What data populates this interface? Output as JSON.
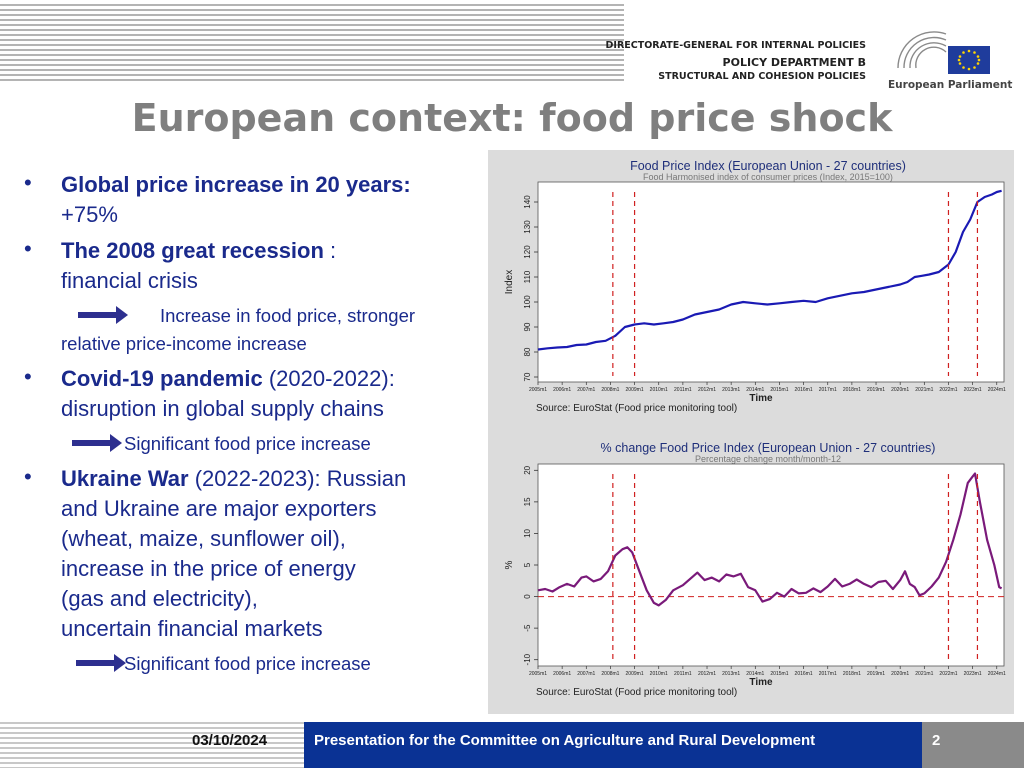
{
  "header": {
    "dg": "DIRECTORATE-GENERAL FOR INTERNAL POLICIES",
    "dept": "POLICY DEPARTMENT B",
    "sub": "STRUCTURAL AND COHESION POLICIES",
    "ep": "European Parliament"
  },
  "slide": {
    "title": "European context: food price shock"
  },
  "bullets": {
    "b1_bold": "Global price increase in 20 years:",
    "b1_text": "+75%",
    "b2_bold": "The 2008 great recession",
    "b2_text": " :",
    "b2_line2": "financial crisis",
    "b2_sub_a": "Increase in food price, stronger",
    "b2_sub_b": "relative price-income increase",
    "b3_bold": "Covid-19 pandemic",
    "b3_text": " (2020-2022):",
    "b3_line2": "disruption in global supply chains",
    "b3_sub": "Significant food price increase",
    "b4_bold": "Ukraine War",
    "b4_text": " (2022-2023): Russian",
    "b4_l2": "and Ukraine are major exporters",
    "b4_l3": "(wheat, maize, sunflower oil),",
    "b4_l4": "increase in the price of energy",
    "b4_l5": "(gas and electricity),",
    "b4_l6": "uncertain financial markets",
    "b4_sub": "Significant food price increase"
  },
  "footer": {
    "date": "03/10/2024",
    "presentation": "Presentation for the Committee on Agriculture and Rural Development",
    "page": "2"
  },
  "chart_data": [
    {
      "type": "line",
      "title": "Food Price Index (European Union - 27 countries)",
      "subtitle": "Food Harmonised index of consumer prices (Index, 2015=100)",
      "xlabel": "Time",
      "ylabel": "Index",
      "source": "Source: EuroStat (Food price monitoring tool)",
      "ylim": [
        68,
        148
      ],
      "yticks": [
        70,
        80,
        90,
        100,
        110,
        120,
        130,
        140
      ],
      "xlim": [
        2005,
        2024.3
      ],
      "xticks": [
        "2005m1",
        "2006m1",
        "2007m1",
        "2008m1",
        "2009m1",
        "2010m1",
        "2011m1",
        "2012m1",
        "2013m1",
        "2014m1",
        "2015m1",
        "2016m1",
        "2017m1",
        "2018m1",
        "2019m1",
        "2020m1",
        "2021m1",
        "2022m1",
        "2023m1",
        "2024m1"
      ],
      "grid": false,
      "color": "#1a1ab4",
      "series": [
        {
          "x": [
            2005.0,
            2005.4,
            2005.8,
            2006.2,
            2006.6,
            2007.0,
            2007.4,
            2007.8,
            2008.2,
            2008.6,
            2009.0,
            2009.4,
            2009.8,
            2010.2,
            2010.6,
            2011.0,
            2011.5,
            2012.0,
            2012.5,
            2013.0,
            2013.5,
            2014.0,
            2014.5,
            2015.0,
            2015.5,
            2016.0,
            2016.5,
            2017.0,
            2017.5,
            2018.0,
            2018.5,
            2019.0,
            2019.5,
            2020.0,
            2020.3,
            2020.6,
            2020.9,
            2021.2,
            2021.6,
            2022.0,
            2022.3,
            2022.6,
            2022.9,
            2023.2,
            2023.5,
            2023.8,
            2024.0,
            2024.2
          ],
          "y": [
            81,
            81.5,
            81.8,
            82,
            82.8,
            83,
            84,
            84.5,
            86.5,
            90,
            91,
            91.5,
            91,
            91.5,
            92,
            93,
            95,
            96,
            97,
            99,
            100,
            99.5,
            99,
            99.5,
            100,
            100.5,
            100,
            101.5,
            102.5,
            103.5,
            104,
            105,
            106,
            107,
            108,
            110,
            110.5,
            111,
            112,
            115,
            120,
            128,
            133,
            140,
            142,
            143,
            144,
            144.5
          ]
        }
      ],
      "vlines": [
        2008.1,
        2009.0,
        2022.0,
        2023.2
      ]
    },
    {
      "type": "line",
      "title": "% change Food Price Index (European Union - 27 countries)",
      "subtitle": "Percentage change month/month-12",
      "xlabel": "Time",
      "ylabel": "%",
      "source": "Source: EuroStat (Food price monitoring tool)",
      "ylim": [
        -11,
        21
      ],
      "yticks": [
        -10,
        -5,
        0,
        5,
        10,
        15,
        20
      ],
      "xlim": [
        2005,
        2024.3
      ],
      "xticks": [
        "2005m1",
        "2006m1",
        "2007m1",
        "2008m1",
        "2009m1",
        "2010m1",
        "2011m1",
        "2012m1",
        "2013m1",
        "2014m1",
        "2015m1",
        "2016m1",
        "2017m1",
        "2018m1",
        "2019m1",
        "2020m1",
        "2021m1",
        "2022m1",
        "2023m1",
        "2024m1"
      ],
      "grid": false,
      "color": "#7a1a7a",
      "hline": 0,
      "series": [
        {
          "x": [
            2005.0,
            2005.3,
            2005.6,
            2005.9,
            2006.2,
            2006.5,
            2006.8,
            2007.0,
            2007.3,
            2007.6,
            2007.9,
            2008.2,
            2008.5,
            2008.7,
            2008.9,
            2009.2,
            2009.5,
            2009.8,
            2010.0,
            2010.3,
            2010.6,
            2011.0,
            2011.3,
            2011.6,
            2011.9,
            2012.2,
            2012.5,
            2012.8,
            2013.1,
            2013.4,
            2013.7,
            2014.0,
            2014.3,
            2014.6,
            2014.9,
            2015.2,
            2015.5,
            2015.8,
            2016.1,
            2016.4,
            2016.7,
            2017.0,
            2017.3,
            2017.6,
            2017.9,
            2018.2,
            2018.5,
            2018.8,
            2019.1,
            2019.4,
            2019.7,
            2020.0,
            2020.2,
            2020.4,
            2020.6,
            2020.8,
            2021.0,
            2021.3,
            2021.6,
            2021.9,
            2022.2,
            2022.5,
            2022.8,
            2023.0,
            2023.1,
            2023.3,
            2023.6,
            2023.9,
            2024.1,
            2024.2
          ],
          "y": [
            1,
            1.2,
            0.8,
            1.5,
            2,
            1.6,
            3,
            3.2,
            2.4,
            2.8,
            4,
            6.5,
            7.5,
            7.8,
            7,
            4,
            1,
            -1,
            -1.4,
            -0.5,
            1,
            1.8,
            2.8,
            3.8,
            2.6,
            3,
            2.4,
            3.5,
            3.2,
            3.6,
            1.5,
            1,
            -0.8,
            -0.4,
            0.6,
            0,
            1.2,
            0.5,
            0.6,
            1.3,
            0.7,
            1.6,
            2.8,
            1.6,
            2,
            2.7,
            2,
            1.5,
            2.3,
            2.5,
            1.2,
            2.6,
            4,
            2,
            1.5,
            0.2,
            0.5,
            1.6,
            3,
            5.5,
            9,
            13,
            18,
            19,
            19.5,
            15,
            9,
            5,
            1.5,
            1.3
          ]
        }
      ],
      "vlines": [
        2008.1,
        2009.0,
        2022.0,
        2023.2
      ]
    }
  ]
}
